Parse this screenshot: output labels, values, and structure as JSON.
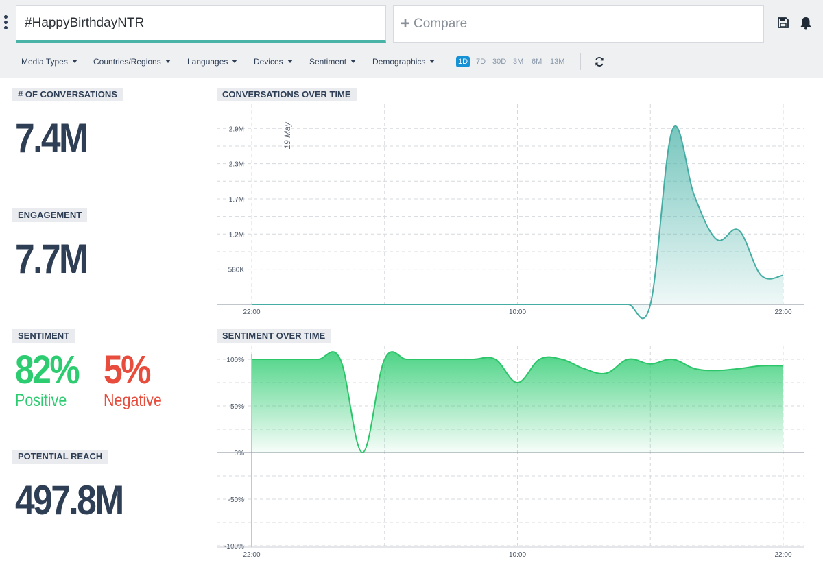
{
  "search": {
    "query": "#HappyBirthdayNTR"
  },
  "compare": {
    "label": "Compare"
  },
  "filters": [
    "Media Types",
    "Countries/Regions",
    "Languages",
    "Devices",
    "Sentiment",
    "Demographics"
  ],
  "ranges": [
    "1D",
    "7D",
    "30D",
    "3M",
    "6M",
    "13M"
  ],
  "active_range": "1D",
  "metrics": {
    "conversations": {
      "label": "# OF CONVERSATIONS",
      "value": "7.4M"
    },
    "engagement": {
      "label": "ENGAGEMENT",
      "value": "7.7M"
    },
    "sentiment": {
      "label": "SENTIMENT",
      "positive_value": "82%",
      "positive_label": "Positive",
      "negative_value": "5%",
      "negative_label": "Negative"
    },
    "reach": {
      "label": "POTENTIAL REACH",
      "value": "497.8M"
    }
  },
  "colors": {
    "accent": "#4ab3a8",
    "positive": "#2ecc71",
    "negative": "#e74c3c",
    "text": "#2e3e55",
    "active_range": "#1591d6"
  },
  "chart_data": [
    {
      "type": "area",
      "title": "CONVERSATIONS OVER TIME",
      "annotation": "19 May",
      "x_tick_labels": [
        "22:00",
        "10:00",
        "22:00"
      ],
      "y_tick_labels": [
        "580K",
        "1.2M",
        "1.7M",
        "2.3M",
        "2.9M"
      ],
      "y_ticks": [
        580000,
        1160000,
        1740000,
        2320000,
        2900000
      ],
      "ylim": [
        0,
        3050000
      ],
      "x": [
        0,
        1,
        2,
        3,
        4,
        5,
        6,
        7,
        8,
        9,
        10,
        11,
        12,
        13,
        14,
        15,
        16,
        17,
        18,
        19,
        20,
        21,
        22,
        23,
        24
      ],
      "series": [
        {
          "values": [
            0,
            0,
            0,
            0,
            0,
            0,
            0,
            0,
            0,
            0,
            0,
            0,
            0,
            0,
            0,
            0,
            0,
            0,
            0,
            2880000,
            1780000,
            1070000,
            1220000,
            480000,
            480000
          ]
        }
      ],
      "grid": true
    },
    {
      "type": "area",
      "title": "SENTIMENT OVER TIME",
      "x_tick_labels": [
        "22:00",
        "10:00",
        "22:00"
      ],
      "y_tick_labels": [
        "100%",
        "50%",
        "0%",
        "-50%",
        "-100%"
      ],
      "y_ticks": [
        100,
        50,
        0,
        -50,
        -100
      ],
      "ylim": [
        -100,
        100
      ],
      "x": [
        0,
        1,
        2,
        3,
        4,
        5,
        6,
        7,
        8,
        9,
        10,
        11,
        12,
        13,
        14,
        15,
        16,
        17,
        18,
        19,
        20,
        21,
        22,
        23,
        24
      ],
      "series": [
        {
          "values": [
            100,
            100,
            100,
            100,
            100,
            0,
            100,
            100,
            100,
            100,
            100,
            100,
            75,
            100,
            100,
            90,
            85,
            100,
            95,
            100,
            90,
            88,
            90,
            93,
            93
          ]
        }
      ],
      "grid": true
    }
  ]
}
